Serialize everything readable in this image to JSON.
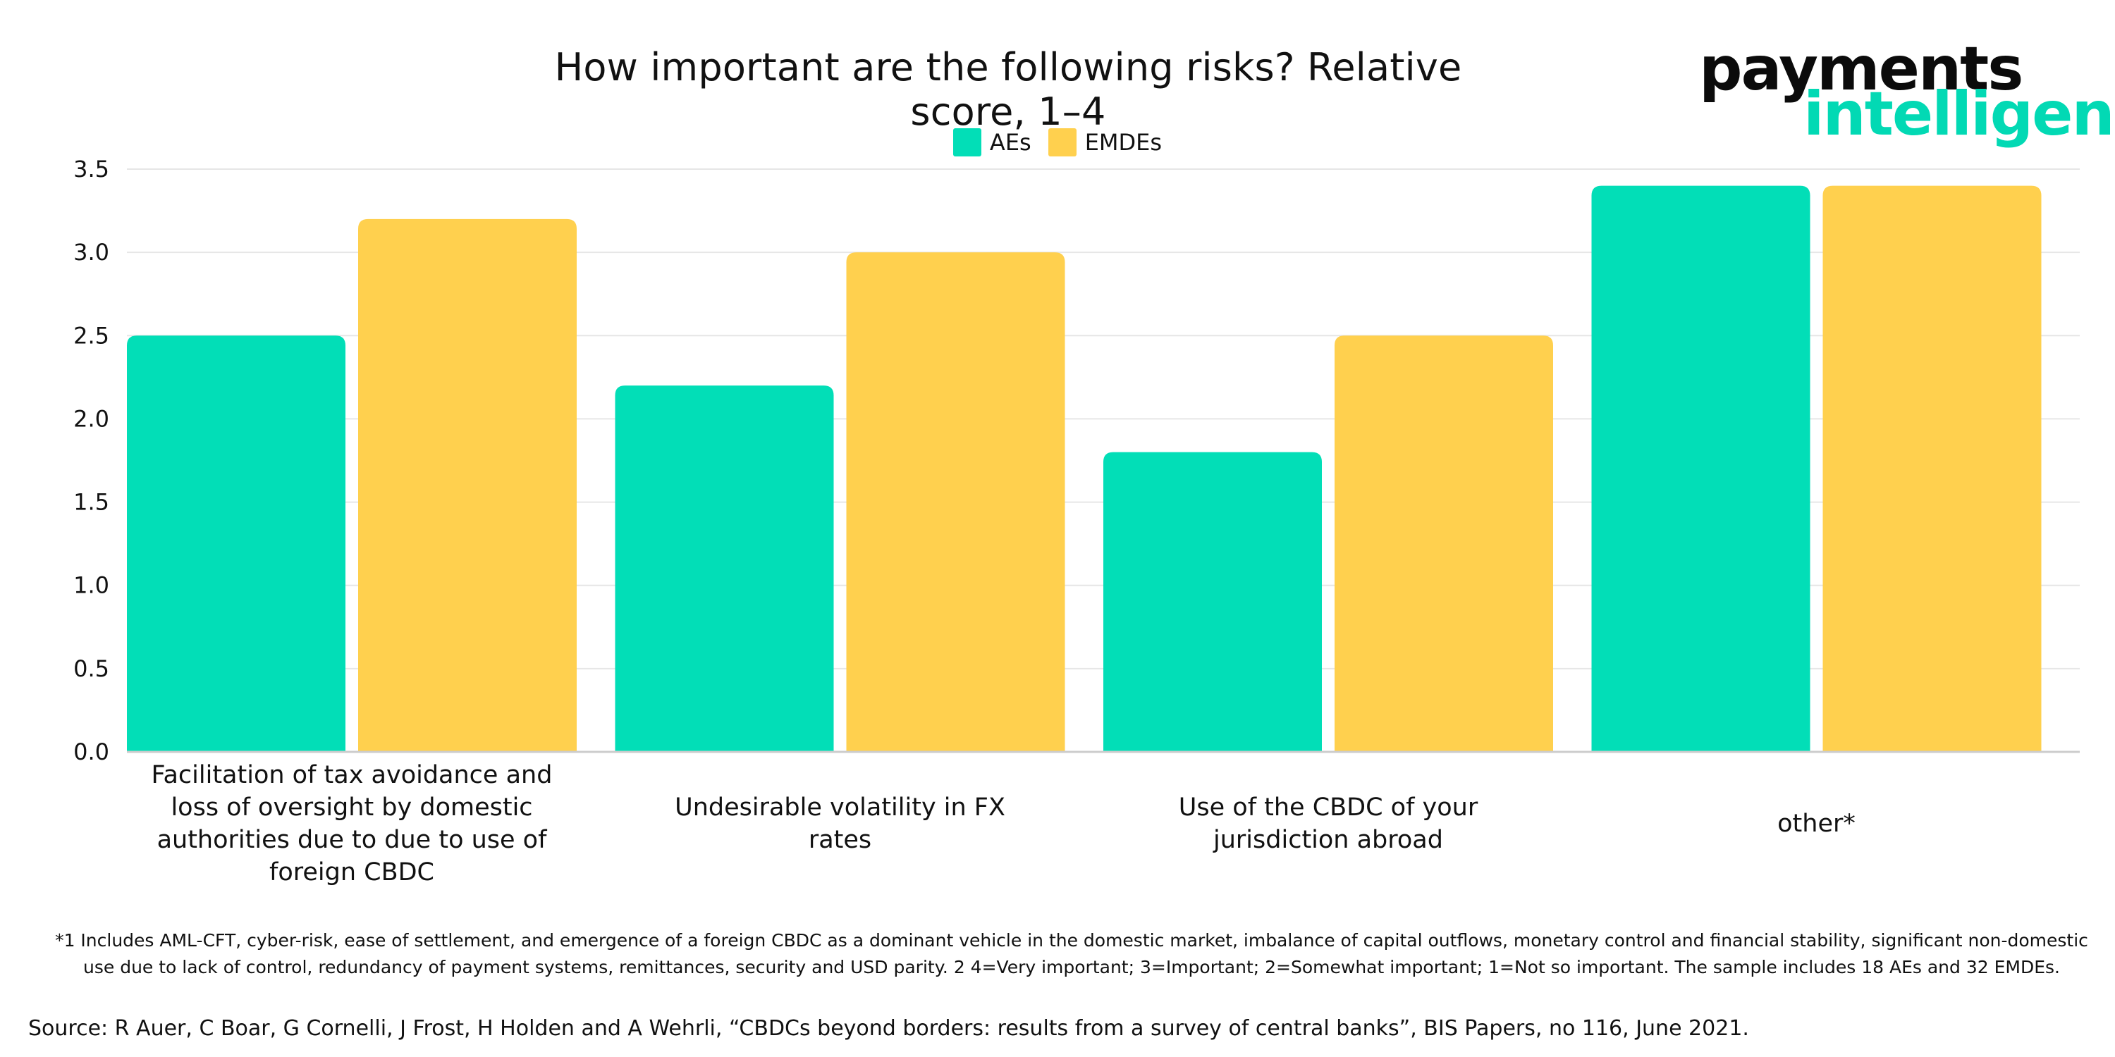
{
  "title": "How important are the following risks? Relative score, 1–4",
  "logo": {
    "line1": "payments",
    "line2": "intelligence"
  },
  "footnote": "*1 Includes AML-CFT, cyber-risk, ease of settlement, and emergence of a foreign CBDC as a dominant vehicle in the domestic market, imbalance of capital outflows, monetary control and financial stability, significant non-domestic use due to lack of control, redundancy of payment systems, remittances, security and USD parity. 2 4=Very important; 3=Important; 2=Somewhat important; 1=Not so important. The sample includes 18 AEs and 32 EMDEs.",
  "source": "Source: R Auer, C Boar, G Cornelli, J Frost, H Holden and A Wehrli, “CBDCs beyond borders: results from a survey of central banks”, BIS Papers, no 116, June 2021.",
  "colors": {
    "AEs": "#02deb7",
    "EMDEs": "#ffd04e",
    "grid": "#e6e6e6",
    "axis": "#cccccc",
    "logo_accent": "#02d9b4"
  },
  "chart_data": {
    "type": "bar",
    "title": "How important are the following risks? Relative score, 1–4",
    "categories": [
      [
        "Facilitation of tax avoidance  and",
        "loss of oversight by domestic",
        "authorities due to due to use of",
        "foreign CBDC"
      ],
      [
        "Undesirable volatility in FX",
        "rates"
      ],
      [
        "Use of the CBDC of your",
        "jurisdiction abroad"
      ],
      [
        "other*"
      ]
    ],
    "series": [
      {
        "name": "AEs",
        "values": [
          2.5,
          2.2,
          1.8,
          3.4
        ]
      },
      {
        "name": "EMDEs",
        "values": [
          3.2,
          3.0,
          2.5,
          3.4
        ]
      }
    ],
    "ylim": [
      0,
      3.5
    ],
    "yticks": [
      "0.0",
      "0.5",
      "1.0",
      "1.5",
      "2.0",
      "2.5",
      "3.0",
      "3.5"
    ],
    "ytick_values": [
      0,
      0.5,
      1.0,
      1.5,
      2.0,
      2.5,
      3.0,
      3.5
    ],
    "grid": true,
    "legend_position": "top-center"
  }
}
